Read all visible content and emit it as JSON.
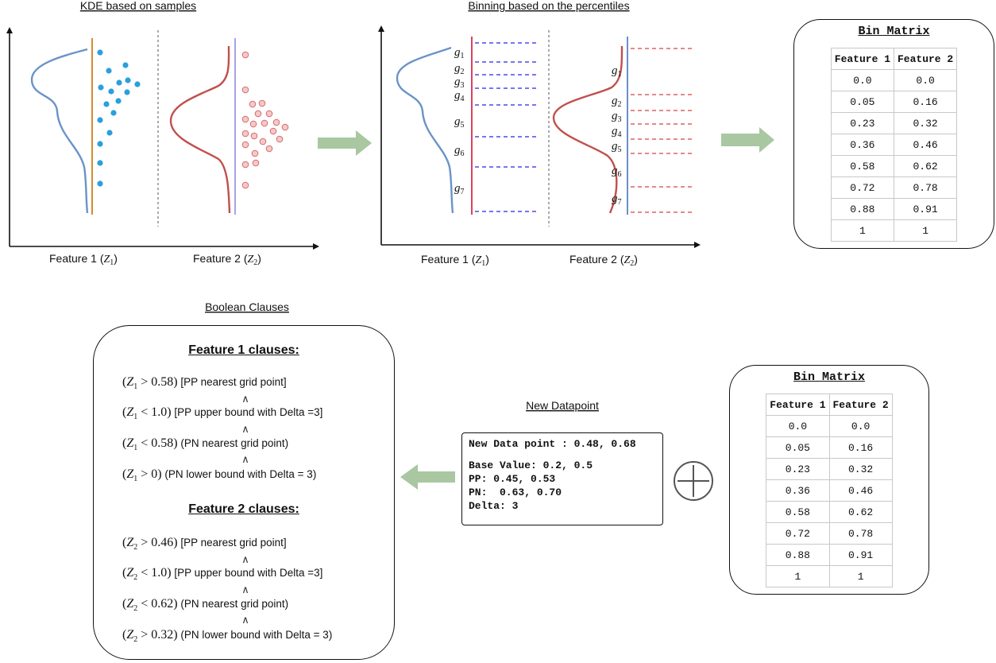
{
  "panels": {
    "kde_title": "KDE based on samples",
    "binning_title": "Binning based on the percentiles",
    "boolean_title": "Boolean Clauses",
    "new_datapoint_title": "New Datapoint"
  },
  "axes": {
    "feature1_label": "Feature 1",
    "feature2_label": "Feature 2",
    "z1": "Z",
    "z1_sub": "1",
    "z2": "Z",
    "z2_sub": "2"
  },
  "grid_labels": [
    "g",
    "g",
    "g",
    "g",
    "g",
    "g",
    "g"
  ],
  "grid_subs": [
    "1",
    "2",
    "3",
    "4",
    "5",
    "6",
    "7"
  ],
  "bin_matrix": {
    "title": "Bin Matrix",
    "headers": [
      "Feature 1",
      "Feature 2"
    ],
    "rows": [
      [
        "0.0",
        "0.0"
      ],
      [
        "0.05",
        "0.16"
      ],
      [
        "0.23",
        "0.32"
      ],
      [
        "0.36",
        "0.46"
      ],
      [
        "0.58",
        "0.62"
      ],
      [
        "0.72",
        "0.78"
      ],
      [
        "0.88",
        "0.91"
      ],
      [
        "1",
        "1"
      ]
    ]
  },
  "new_datapoint": {
    "lines": [
      "New Data point : 0.48, 0.68",
      "",
      "Base Value: 0.2, 0.5",
      "PP: 0.45, 0.53",
      "PN:  0.63, 0.70",
      "Delta: 3"
    ]
  },
  "clauses": {
    "and_symbol": "∧",
    "features": [
      {
        "title": "Feature 1 clauses:",
        "var": "Z",
        "sub": "1",
        "items": [
          {
            "op": ">",
            "val": "0.58",
            "text": " [PP nearest grid point]"
          },
          {
            "op": "<",
            "val": "1.0",
            "text": " [PP upper bound with Delta =3]"
          },
          {
            "op": "<",
            "val": "0.58",
            "text": " (PN nearest grid point)"
          },
          {
            "op": ">",
            "val": "0",
            "text": " (PN lower bound with Delta = 3)"
          }
        ]
      },
      {
        "title": "Feature 2 clauses:",
        "var": "Z",
        "sub": "2",
        "items": [
          {
            "op": ">",
            "val": "0.46",
            "text": " [PP nearest grid point]"
          },
          {
            "op": "<",
            "val": "1.0",
            "text": " [PP upper bound with Delta =3]"
          },
          {
            "op": "<",
            "val": "0.62",
            "text": " (PN nearest grid point)"
          },
          {
            "op": ">",
            "val": "0.32",
            "text": " (PN lower bound with Delta = 3)"
          }
        ]
      }
    ]
  },
  "colors": {
    "blue_curve": "#6b93c8",
    "red_curve": "#c0504d",
    "blue_dot": "#2b9fdc",
    "pink_dot_fill": "#f6c8c8",
    "pink_dot_stroke": "#d46a6a",
    "orange_line": "#d8892f",
    "lilac_line": "#a7a3e6",
    "blue_dash": "#4a4ae8",
    "red_dash": "#e06060",
    "arrow_green": "#a9c7a1"
  }
}
